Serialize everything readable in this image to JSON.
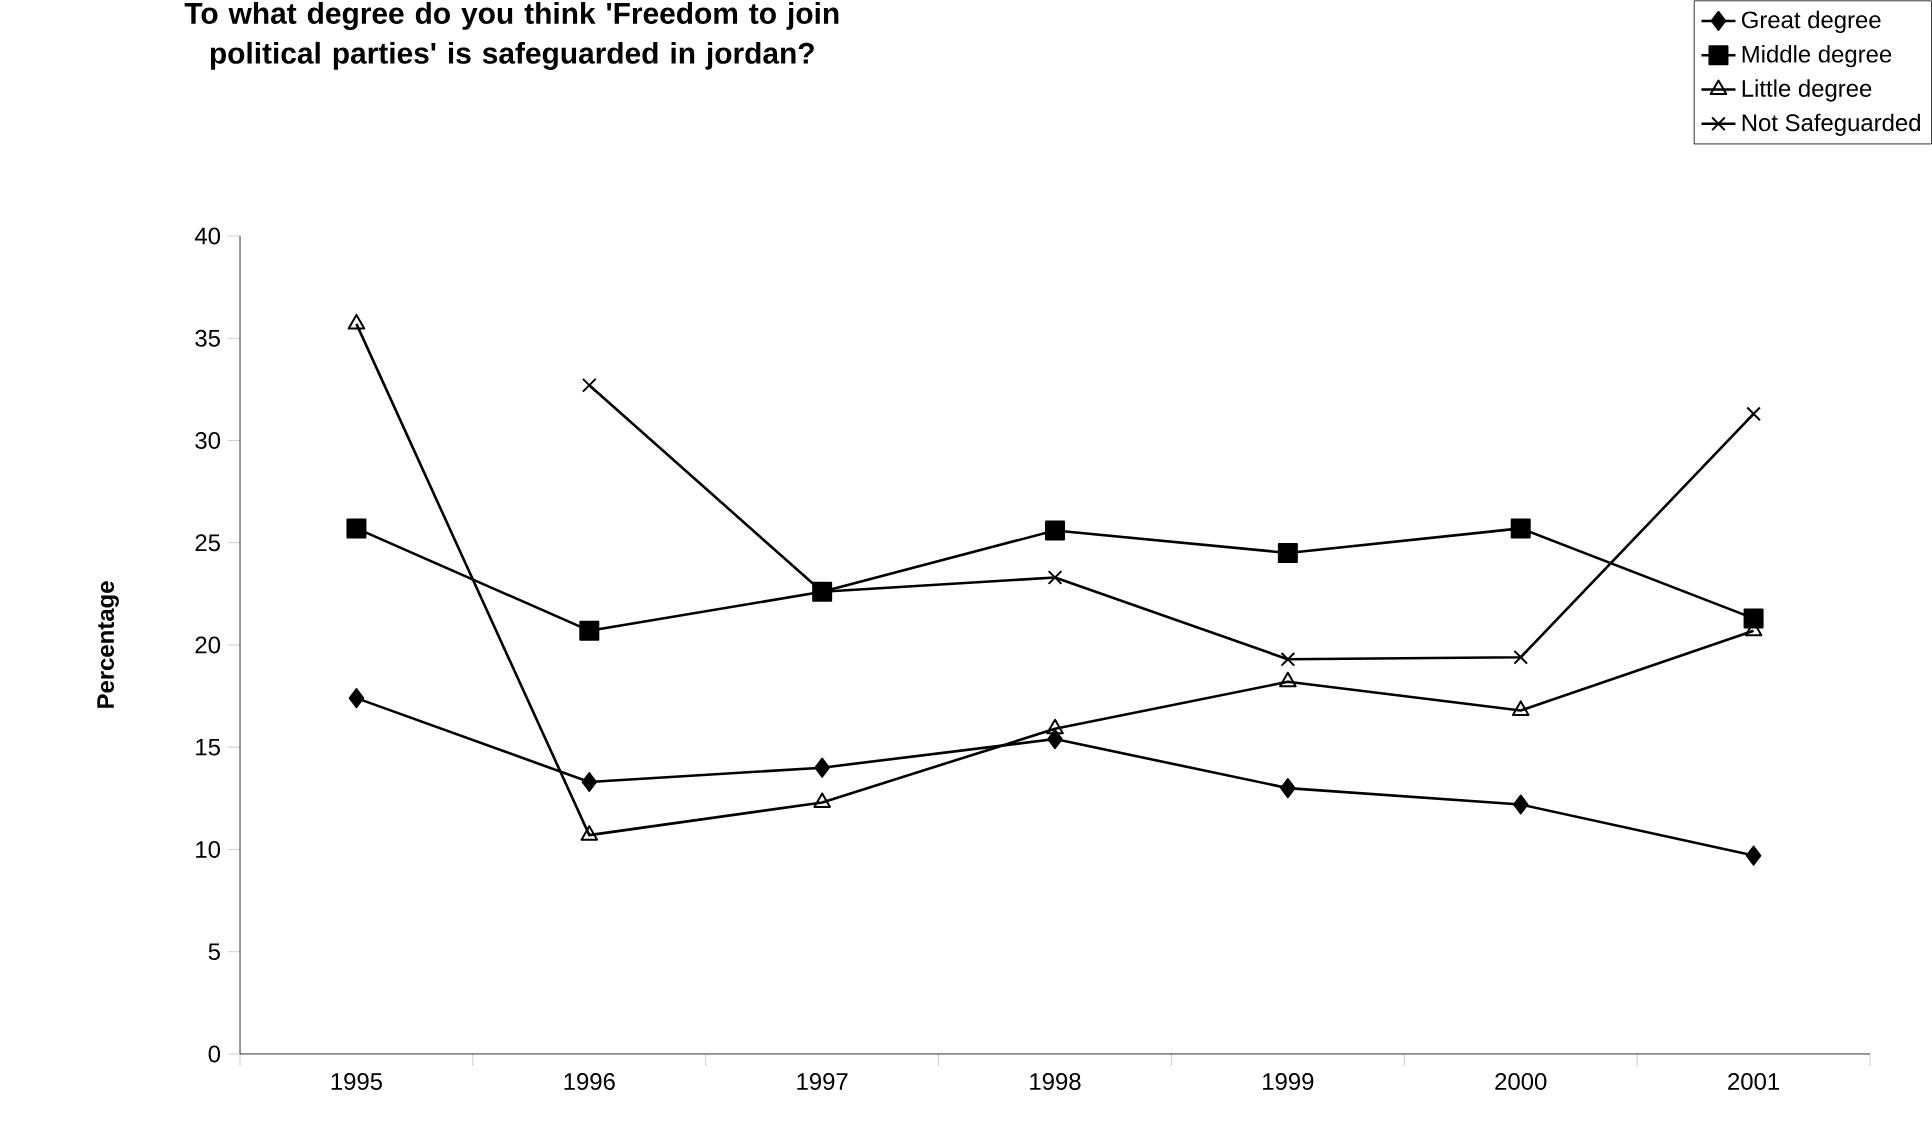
{
  "chart_data": {
    "type": "line",
    "title": "To what degree do you think 'Freedom to join political parties' is safeguarded  in jordan?",
    "ylabel": "Percentage",
    "categories": [
      "1995",
      "1996",
      "1997",
      "1998",
      "1999",
      "2000",
      "2001"
    ],
    "series": [
      {
        "name": "Great degree",
        "color": "#000000",
        "marker": "diamond",
        "values": [
          17.4,
          13.3,
          14.0,
          15.4,
          13.0,
          12.2,
          9.7
        ]
      },
      {
        "name": "Middle degree",
        "color": "#000000",
        "marker": "square",
        "values": [
          25.7,
          20.7,
          22.6,
          25.6,
          24.5,
          25.7,
          21.3
        ]
      },
      {
        "name": "Little degree",
        "color": "#000000",
        "marker": "triangle",
        "values": [
          35.7,
          10.7,
          12.3,
          15.9,
          18.2,
          16.8,
          20.7
        ]
      },
      {
        "name": "Not Safeguarded",
        "color": "#000000",
        "marker": "cross",
        "values": [
          null,
          32.7,
          22.6,
          23.3,
          19.3,
          19.4,
          31.3
        ]
      }
    ],
    "ylim": [
      0,
      40
    ],
    "yticks": [
      0,
      5,
      10,
      15,
      20,
      25,
      30,
      35,
      40
    ],
    "grid": false,
    "legend": "top right",
    "line_style": "solid"
  }
}
